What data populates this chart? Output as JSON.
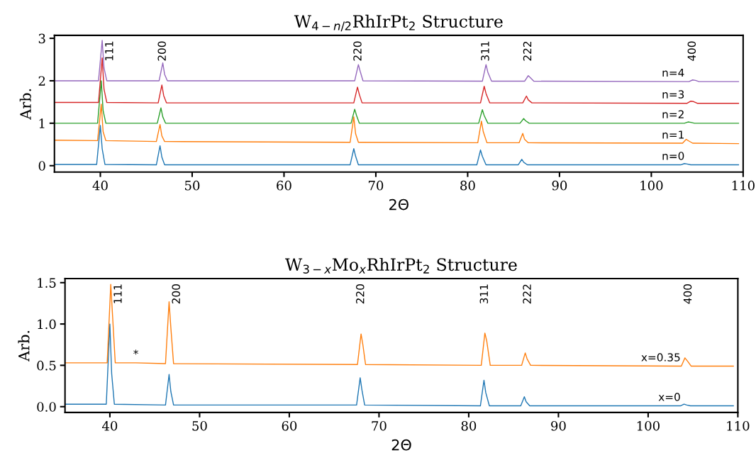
{
  "chart_data": [
    {
      "type": "line",
      "title": "W$_{4−n/2}$RhIrPt$_{2}$ Structure",
      "xlabel": "2Θ",
      "ylabel": "Arb.",
      "xlim": [
        35,
        110
      ],
      "xticks": [
        40,
        50,
        60,
        70,
        80,
        90,
        100,
        110
      ],
      "ylim": [
        -0.15,
        3.07
      ],
      "yticks": [
        0,
        1,
        2,
        3
      ],
      "grid": false,
      "legend": false,
      "marker": "none",
      "line_style": "solid",
      "annotations": [
        {
          "text": "111",
          "x": 40.2,
          "y": 2.95
        },
        {
          "text": "200",
          "x": 46.8,
          "y": 2.42
        },
        {
          "text": "220",
          "x": 68.1,
          "y": 2.38
        },
        {
          "text": "311",
          "x": 82.0,
          "y": 2.38
        },
        {
          "text": "222",
          "x": 86.6,
          "y": 2.12
        },
        {
          "text": "400",
          "x": 104.5,
          "y": 2.02
        }
      ],
      "series": [
        {
          "name": "n=0",
          "color": "#1f77b4",
          "x": [
            35,
            39.6,
            40.0,
            40.2,
            40.5,
            46.1,
            46.5,
            46.7,
            47.0,
            67.2,
            67.6,
            67.8,
            68.1,
            81.0,
            81.4,
            81.6,
            82.0,
            85.5,
            85.9,
            86.1,
            86.5,
            103.2,
            103.6,
            103.9,
            104.3,
            109.5
          ],
          "values": [
            0.03,
            0.03,
            0.95,
            0.4,
            0.03,
            0.02,
            0.47,
            0.2,
            0.02,
            0.02,
            0.4,
            0.22,
            0.02,
            0.02,
            0.37,
            0.22,
            0.02,
            0.02,
            0.15,
            0.08,
            0.02,
            0.02,
            0.05,
            0.04,
            0.02,
            0.02
          ]
        },
        {
          "name": "n=1",
          "color": "#ff7f0e",
          "x": [
            35,
            39.7,
            40.1,
            40.3,
            40.6,
            46.1,
            46.5,
            46.7,
            47.0,
            67.2,
            67.6,
            67.8,
            68.1,
            81.1,
            81.5,
            81.7,
            82.1,
            85.6,
            86.0,
            86.2,
            86.6,
            103.4,
            103.8,
            104.1,
            104.5,
            109.5
          ],
          "values": [
            0.6,
            0.59,
            1.45,
            0.8,
            0.59,
            0.57,
            0.97,
            0.7,
            0.57,
            0.55,
            1.15,
            0.75,
            0.55,
            0.54,
            1.05,
            0.8,
            0.54,
            0.54,
            0.76,
            0.62,
            0.54,
            0.53,
            0.62,
            0.58,
            0.53,
            0.52
          ]
        },
        {
          "name": "n=2",
          "color": "#2ca02c",
          "x": [
            35,
            39.7,
            40.1,
            40.3,
            40.6,
            46.2,
            46.6,
            46.8,
            47.1,
            67.3,
            67.7,
            67.9,
            68.2,
            81.2,
            81.6,
            81.8,
            82.2,
            85.7,
            86.1,
            86.3,
            86.7,
            103.6,
            104.0,
            104.3,
            104.7,
            109.5
          ],
          "values": [
            1.0,
            1.0,
            2.0,
            1.3,
            1.0,
            1.0,
            1.36,
            1.15,
            1.0,
            1.0,
            1.33,
            1.18,
            1.0,
            1.0,
            1.32,
            1.18,
            1.0,
            1.0,
            1.11,
            1.06,
            1.0,
            1.0,
            1.03,
            1.02,
            1.0,
            1.0
          ]
        },
        {
          "name": "n=3",
          "color": "#d62728",
          "x": [
            35,
            39.8,
            40.2,
            40.4,
            40.7,
            46.3,
            46.7,
            46.9,
            47.2,
            67.6,
            68.0,
            68.2,
            68.5,
            81.4,
            81.8,
            82.0,
            82.4,
            86.0,
            86.4,
            86.6,
            87.0,
            103.9,
            104.3,
            104.6,
            105.0,
            109.5
          ],
          "values": [
            1.49,
            1.49,
            2.54,
            1.8,
            1.49,
            1.48,
            1.9,
            1.65,
            1.48,
            1.48,
            1.85,
            1.68,
            1.48,
            1.48,
            1.87,
            1.7,
            1.48,
            1.48,
            1.64,
            1.55,
            1.48,
            1.47,
            1.52,
            1.51,
            1.47,
            1.47
          ]
        },
        {
          "name": "n=4",
          "color": "#9467bd",
          "x": [
            35,
            39.8,
            40.2,
            40.4,
            40.7,
            46.4,
            46.8,
            47.0,
            47.3,
            67.7,
            68.1,
            68.3,
            68.6,
            81.6,
            82.0,
            82.2,
            82.6,
            86.2,
            86.6,
            86.8,
            87.2,
            104.1,
            104.5,
            104.8,
            105.2,
            109.5
          ],
          "values": [
            2.0,
            2.0,
            2.95,
            2.3,
            2.0,
            2.0,
            2.42,
            2.15,
            2.0,
            2.0,
            2.38,
            2.22,
            2.0,
            1.99,
            2.38,
            2.2,
            1.99,
            1.99,
            2.12,
            2.08,
            1.99,
            1.98,
            2.02,
            2.01,
            1.98,
            1.98
          ]
        }
      ]
    },
    {
      "type": "line",
      "title": "W$_{3−x}$Mo$_{x}$RhIrPt$_{2}$ Structure",
      "xlabel": "2Θ",
      "ylabel": "Arb.",
      "xlim": [
        35,
        110
      ],
      "xticks": [
        40,
        50,
        60,
        70,
        80,
        90,
        100,
        110
      ],
      "ylim": [
        -0.07,
        1.55
      ],
      "yticks": [
        {
          "value": 0,
          "label": "0.0"
        },
        0.5,
        {
          "value": 1,
          "label": "1.0"
        },
        1.5
      ],
      "grid": false,
      "legend": false,
      "marker": "none",
      "line_style": "solid",
      "annotations": [
        {
          "text": "111",
          "x": 40.1,
          "y": 1.48
        },
        {
          "text": "200",
          "x": 46.6,
          "y": 1.27
        },
        {
          "text": "220",
          "x": 68.0,
          "y": 0.88
        },
        {
          "text": "311",
          "x": 81.8,
          "y": 0.89
        },
        "222",
        "400",
        {
          "text": "*",
          "x": 42.9,
          "y": 0.53
        }
      ],
      "series": [
        {
          "name": "x=0",
          "color": "#1f77b4",
          "x": [
            35,
            39.6,
            40.0,
            40.2,
            40.5,
            46.2,
            46.6,
            46.8,
            47.1,
            67.5,
            67.9,
            68.1,
            68.4,
            81.3,
            81.7,
            81.9,
            82.3,
            85.8,
            86.2,
            86.4,
            86.8,
            103.6,
            104.0,
            104.3,
            104.7,
            109.5
          ],
          "values": [
            0.03,
            0.03,
            1.0,
            0.4,
            0.03,
            0.02,
            0.39,
            0.18,
            0.02,
            0.02,
            0.35,
            0.2,
            0.02,
            0.01,
            0.32,
            0.17,
            0.01,
            0.01,
            0.12,
            0.06,
            0.01,
            0.01,
            0.03,
            0.02,
            0.01,
            0.01
          ]
        },
        {
          "name": "x=0.35",
          "color": "#ff7f0e",
          "x": [
            35,
            39.7,
            40.1,
            40.3,
            40.6,
            42.9,
            46.2,
            46.6,
            46.8,
            47.1,
            67.6,
            68.0,
            68.2,
            68.5,
            81.4,
            81.8,
            82.0,
            82.4,
            85.9,
            86.3,
            86.5,
            86.9,
            103.7,
            104.1,
            104.4,
            104.8,
            109.5
          ],
          "values": [
            0.53,
            0.53,
            1.48,
            1.1,
            0.53,
            0.53,
            0.52,
            1.27,
            0.95,
            0.52,
            0.51,
            0.88,
            0.75,
            0.51,
            0.5,
            0.89,
            0.8,
            0.5,
            0.5,
            0.65,
            0.58,
            0.5,
            0.49,
            0.59,
            0.55,
            0.49,
            0.49
          ]
        }
      ]
    }
  ]
}
